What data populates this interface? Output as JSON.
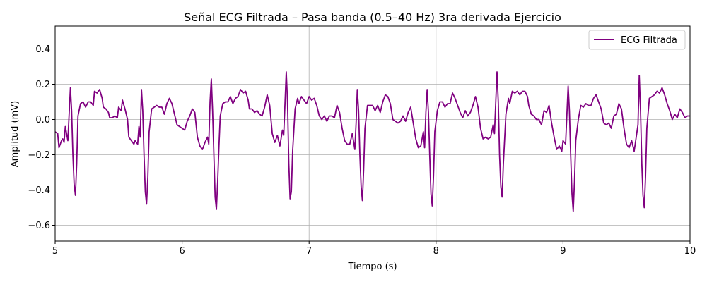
{
  "chart_data": {
    "type": "line",
    "title": "Señal ECG Filtrada – Pasa banda (0.5–40 Hz) 3ra derivada Ejercicio",
    "xlabel": "Tiempo (s)",
    "ylabel": "Amplitud (mV)",
    "xlim": [
      5,
      10
    ],
    "ylim": [
      -0.69,
      0.53
    ],
    "xticks": [
      5,
      6,
      7,
      8,
      9,
      10
    ],
    "yticks": [
      -0.6,
      -0.4,
      -0.2,
      0.0,
      0.2,
      0.4
    ],
    "xtick_labels": [
      "5",
      "6",
      "7",
      "8",
      "9",
      "10"
    ],
    "ytick_labels": [
      "−0.6",
      "−0.4",
      "−0.2",
      "0.0",
      "0.2",
      "0.4"
    ],
    "grid": true,
    "legend_position": "top-right",
    "series": [
      {
        "name": "ECG Filtrada",
        "color": "#800080",
        "points": [
          [
            5.0,
            -0.07
          ],
          [
            5.02,
            -0.08
          ],
          [
            5.03,
            -0.16
          ],
          [
            5.05,
            -0.12
          ],
          [
            5.06,
            -0.11
          ],
          [
            5.07,
            -0.13
          ],
          [
            5.08,
            -0.04
          ],
          [
            5.1,
            -0.12
          ],
          [
            5.12,
            0.18
          ],
          [
            5.13,
            0.05
          ],
          [
            5.14,
            -0.2
          ],
          [
            5.15,
            -0.37
          ],
          [
            5.16,
            -0.43
          ],
          [
            5.17,
            -0.25
          ],
          [
            5.18,
            0.02
          ],
          [
            5.2,
            0.09
          ],
          [
            5.22,
            0.1
          ],
          [
            5.24,
            0.07
          ],
          [
            5.26,
            0.1
          ],
          [
            5.28,
            0.1
          ],
          [
            5.3,
            0.08
          ],
          [
            5.31,
            0.16
          ],
          [
            5.33,
            0.15
          ],
          [
            5.35,
            0.17
          ],
          [
            5.37,
            0.12
          ],
          [
            5.38,
            0.07
          ],
          [
            5.4,
            0.06
          ],
          [
            5.42,
            0.04
          ],
          [
            5.43,
            0.01
          ],
          [
            5.45,
            0.01
          ],
          [
            5.47,
            0.02
          ],
          [
            5.49,
            0.01
          ],
          [
            5.5,
            0.07
          ],
          [
            5.52,
            0.05
          ],
          [
            5.53,
            0.11
          ],
          [
            5.55,
            0.06
          ],
          [
            5.57,
            0.0
          ],
          [
            5.58,
            -0.1
          ],
          [
            5.6,
            -0.12
          ],
          [
            5.62,
            -0.14
          ],
          [
            5.63,
            -0.12
          ],
          [
            5.65,
            -0.14
          ],
          [
            5.66,
            -0.04
          ],
          [
            5.67,
            -0.1
          ],
          [
            5.68,
            0.17
          ],
          [
            5.69,
            0.05
          ],
          [
            5.7,
            -0.2
          ],
          [
            5.71,
            -0.41
          ],
          [
            5.72,
            -0.48
          ],
          [
            5.73,
            -0.33
          ],
          [
            5.74,
            -0.07
          ],
          [
            5.76,
            0.06
          ],
          [
            5.78,
            0.07
          ],
          [
            5.8,
            0.08
          ],
          [
            5.82,
            0.07
          ],
          [
            5.84,
            0.07
          ],
          [
            5.86,
            0.03
          ],
          [
            5.88,
            0.09
          ],
          [
            5.9,
            0.12
          ],
          [
            5.92,
            0.09
          ],
          [
            5.94,
            0.03
          ],
          [
            5.96,
            -0.03
          ],
          [
            5.98,
            -0.04
          ],
          [
            6.0,
            -0.05
          ],
          [
            6.02,
            -0.06
          ],
          [
            6.04,
            -0.01
          ],
          [
            6.06,
            0.02
          ],
          [
            6.08,
            0.06
          ],
          [
            6.1,
            0.04
          ],
          [
            6.12,
            -0.1
          ],
          [
            6.14,
            -0.15
          ],
          [
            6.16,
            -0.17
          ],
          [
            6.18,
            -0.13
          ],
          [
            6.2,
            -0.1
          ],
          [
            6.21,
            -0.14
          ],
          [
            6.22,
            0.1
          ],
          [
            6.23,
            0.23
          ],
          [
            6.24,
            0.05
          ],
          [
            6.25,
            -0.2
          ],
          [
            6.26,
            -0.44
          ],
          [
            6.27,
            -0.51
          ],
          [
            6.28,
            -0.35
          ],
          [
            6.29,
            -0.15
          ],
          [
            6.3,
            0.02
          ],
          [
            6.32,
            0.09
          ],
          [
            6.34,
            0.1
          ],
          [
            6.36,
            0.1
          ],
          [
            6.38,
            0.13
          ],
          [
            6.4,
            0.09
          ],
          [
            6.42,
            0.12
          ],
          [
            6.44,
            0.13
          ],
          [
            6.46,
            0.17
          ],
          [
            6.48,
            0.15
          ],
          [
            6.5,
            0.16
          ],
          [
            6.52,
            0.11
          ],
          [
            6.53,
            0.06
          ],
          [
            6.55,
            0.06
          ],
          [
            6.57,
            0.04
          ],
          [
            6.59,
            0.05
          ],
          [
            6.61,
            0.03
          ],
          [
            6.63,
            0.02
          ],
          [
            6.65,
            0.07
          ],
          [
            6.67,
            0.14
          ],
          [
            6.69,
            0.08
          ],
          [
            6.71,
            -0.08
          ],
          [
            6.73,
            -0.13
          ],
          [
            6.75,
            -0.09
          ],
          [
            6.77,
            -0.15
          ],
          [
            6.79,
            -0.06
          ],
          [
            6.8,
            -0.09
          ],
          [
            6.82,
            0.27
          ],
          [
            6.83,
            0.1
          ],
          [
            6.84,
            -0.25
          ],
          [
            6.85,
            -0.45
          ],
          [
            6.86,
            -0.41
          ],
          [
            6.87,
            -0.18
          ],
          [
            6.89,
            0.06
          ],
          [
            6.91,
            0.12
          ],
          [
            6.92,
            0.09
          ],
          [
            6.94,
            0.13
          ],
          [
            6.96,
            0.11
          ],
          [
            6.98,
            0.09
          ],
          [
            7.0,
            0.13
          ],
          [
            7.02,
            0.11
          ],
          [
            7.04,
            0.12
          ],
          [
            7.06,
            0.08
          ],
          [
            7.08,
            0.02
          ],
          [
            7.1,
            0.0
          ],
          [
            7.12,
            0.02
          ],
          [
            7.14,
            -0.01
          ],
          [
            7.16,
            0.02
          ],
          [
            7.18,
            0.02
          ],
          [
            7.2,
            0.01
          ],
          [
            7.22,
            0.08
          ],
          [
            7.24,
            0.04
          ],
          [
            7.26,
            -0.05
          ],
          [
            7.28,
            -0.12
          ],
          [
            7.3,
            -0.14
          ],
          [
            7.32,
            -0.14
          ],
          [
            7.34,
            -0.08
          ],
          [
            7.36,
            -0.17
          ],
          [
            7.37,
            -0.02
          ],
          [
            7.38,
            0.17
          ],
          [
            7.39,
            0.05
          ],
          [
            7.4,
            -0.2
          ],
          [
            7.41,
            -0.38
          ],
          [
            7.42,
            -0.46
          ],
          [
            7.43,
            -0.28
          ],
          [
            7.44,
            -0.05
          ],
          [
            7.46,
            0.08
          ],
          [
            7.48,
            0.08
          ],
          [
            7.5,
            0.08
          ],
          [
            7.52,
            0.05
          ],
          [
            7.54,
            0.08
          ],
          [
            7.56,
            0.04
          ],
          [
            7.58,
            0.1
          ],
          [
            7.6,
            0.14
          ],
          [
            7.62,
            0.13
          ],
          [
            7.64,
            0.09
          ],
          [
            7.66,
            0.0
          ],
          [
            7.68,
            -0.01
          ],
          [
            7.7,
            -0.02
          ],
          [
            7.72,
            -0.01
          ],
          [
            7.74,
            0.02
          ],
          [
            7.76,
            -0.01
          ],
          [
            7.78,
            0.04
          ],
          [
            7.8,
            0.07
          ],
          [
            7.82,
            -0.02
          ],
          [
            7.84,
            -0.11
          ],
          [
            7.86,
            -0.16
          ],
          [
            7.88,
            -0.15
          ],
          [
            7.9,
            -0.07
          ],
          [
            7.91,
            -0.16
          ],
          [
            7.92,
            0.04
          ],
          [
            7.93,
            0.17
          ],
          [
            7.94,
            0.04
          ],
          [
            7.95,
            -0.2
          ],
          [
            7.96,
            -0.42
          ],
          [
            7.97,
            -0.49
          ],
          [
            7.98,
            -0.32
          ],
          [
            7.99,
            -0.07
          ],
          [
            8.01,
            0.05
          ],
          [
            8.03,
            0.1
          ],
          [
            8.05,
            0.1
          ],
          [
            8.07,
            0.07
          ],
          [
            8.09,
            0.09
          ],
          [
            8.11,
            0.09
          ],
          [
            8.13,
            0.15
          ],
          [
            8.15,
            0.12
          ],
          [
            8.17,
            0.08
          ],
          [
            8.19,
            0.04
          ],
          [
            8.21,
            0.01
          ],
          [
            8.23,
            0.05
          ],
          [
            8.25,
            0.02
          ],
          [
            8.27,
            0.04
          ],
          [
            8.29,
            0.08
          ],
          [
            8.31,
            0.13
          ],
          [
            8.33,
            0.07
          ],
          [
            8.35,
            -0.05
          ],
          [
            8.37,
            -0.11
          ],
          [
            8.39,
            -0.1
          ],
          [
            8.41,
            -0.11
          ],
          [
            8.43,
            -0.1
          ],
          [
            8.45,
            -0.03
          ],
          [
            8.46,
            -0.08
          ],
          [
            8.48,
            0.27
          ],
          [
            8.49,
            0.1
          ],
          [
            8.5,
            -0.2
          ],
          [
            8.51,
            -0.38
          ],
          [
            8.52,
            -0.44
          ],
          [
            8.53,
            -0.25
          ],
          [
            8.55,
            0.03
          ],
          [
            8.57,
            0.12
          ],
          [
            8.58,
            0.09
          ],
          [
            8.6,
            0.16
          ],
          [
            8.62,
            0.15
          ],
          [
            8.64,
            0.16
          ],
          [
            8.66,
            0.14
          ],
          [
            8.68,
            0.16
          ],
          [
            8.7,
            0.16
          ],
          [
            8.72,
            0.13
          ],
          [
            8.73,
            0.08
          ],
          [
            8.75,
            0.03
          ],
          [
            8.77,
            0.02
          ],
          [
            8.79,
            0.0
          ],
          [
            8.81,
            0.0
          ],
          [
            8.83,
            -0.03
          ],
          [
            8.85,
            0.05
          ],
          [
            8.87,
            0.04
          ],
          [
            8.89,
            0.08
          ],
          [
            8.91,
            -0.02
          ],
          [
            8.93,
            -0.1
          ],
          [
            8.95,
            -0.17
          ],
          [
            8.97,
            -0.15
          ],
          [
            8.99,
            -0.18
          ],
          [
            9.0,
            -0.12
          ],
          [
            9.02,
            -0.14
          ],
          [
            9.04,
            0.19
          ],
          [
            9.05,
            0.05
          ],
          [
            9.06,
            -0.2
          ],
          [
            9.07,
            -0.42
          ],
          [
            9.08,
            -0.52
          ],
          [
            9.09,
            -0.35
          ],
          [
            9.1,
            -0.12
          ],
          [
            9.12,
            0.0
          ],
          [
            9.14,
            0.08
          ],
          [
            9.16,
            0.07
          ],
          [
            9.18,
            0.09
          ],
          [
            9.2,
            0.08
          ],
          [
            9.22,
            0.08
          ],
          [
            9.24,
            0.12
          ],
          [
            9.26,
            0.14
          ],
          [
            9.28,
            0.1
          ],
          [
            9.3,
            0.06
          ],
          [
            9.32,
            -0.02
          ],
          [
            9.34,
            -0.03
          ],
          [
            9.36,
            -0.02
          ],
          [
            9.38,
            -0.05
          ],
          [
            9.4,
            0.02
          ],
          [
            9.42,
            0.03
          ],
          [
            9.44,
            0.09
          ],
          [
            9.46,
            0.06
          ],
          [
            9.48,
            -0.05
          ],
          [
            9.5,
            -0.14
          ],
          [
            9.52,
            -0.16
          ],
          [
            9.54,
            -0.12
          ],
          [
            9.56,
            -0.18
          ],
          [
            9.58,
            -0.08
          ],
          [
            9.59,
            -0.03
          ],
          [
            9.6,
            0.25
          ],
          [
            9.61,
            0.05
          ],
          [
            9.62,
            -0.25
          ],
          [
            9.63,
            -0.43
          ],
          [
            9.64,
            -0.5
          ],
          [
            9.65,
            -0.32
          ],
          [
            9.66,
            -0.05
          ],
          [
            9.68,
            0.12
          ],
          [
            9.7,
            0.13
          ],
          [
            9.72,
            0.14
          ],
          [
            9.74,
            0.16
          ],
          [
            9.76,
            0.15
          ],
          [
            9.78,
            0.18
          ],
          [
            9.8,
            0.14
          ],
          [
            9.82,
            0.09
          ],
          [
            9.84,
            0.05
          ],
          [
            9.86,
            0.0
          ],
          [
            9.88,
            0.03
          ],
          [
            9.9,
            0.01
          ],
          [
            9.92,
            0.06
          ],
          [
            9.94,
            0.04
          ],
          [
            9.96,
            0.01
          ],
          [
            9.98,
            0.02
          ],
          [
            10.0,
            0.02
          ]
        ]
      }
    ]
  }
}
